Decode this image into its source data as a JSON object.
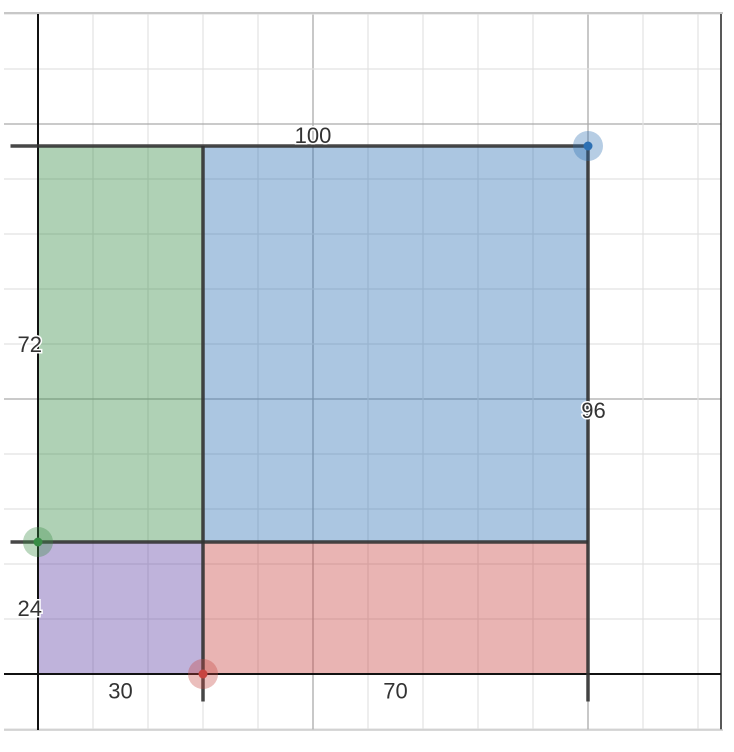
{
  "graph": {
    "x_range": [
      -6,
      124
    ],
    "y_range": [
      -10,
      120
    ],
    "grid_step": 10,
    "major_step": 50,
    "rectangles": [
      {
        "name": "green",
        "x": [
          0,
          30
        ],
        "y": [
          24,
          96
        ],
        "color": "#388c46"
      },
      {
        "name": "blue",
        "x": [
          30,
          100
        ],
        "y": [
          24,
          96
        ],
        "color": "#2d70b3"
      },
      {
        "name": "purple",
        "x": [
          0,
          30
        ],
        "y": [
          0,
          24
        ],
        "color": "#6042a6"
      },
      {
        "name": "red",
        "x": [
          30,
          100
        ],
        "y": [
          0,
          24
        ],
        "color": "#c74440"
      }
    ],
    "points": [
      {
        "name": "blue",
        "x": 100,
        "y": 96,
        "color": "#2d70b3"
      },
      {
        "name": "green",
        "x": 0,
        "y": 24,
        "color": "#388c46"
      },
      {
        "name": "red",
        "x": 30,
        "y": 0,
        "color": "#c74440"
      }
    ],
    "labels": [
      {
        "text": "100",
        "x": 50,
        "y": 98
      },
      {
        "text": "72",
        "x": -1.5,
        "y": 60
      },
      {
        "text": "96",
        "x": 101,
        "y": 48
      },
      {
        "text": "24",
        "x": -1.5,
        "y": 12
      },
      {
        "text": "30",
        "x": 15,
        "y": -3
      },
      {
        "text": "70",
        "x": 65,
        "y": -3
      }
    ]
  }
}
